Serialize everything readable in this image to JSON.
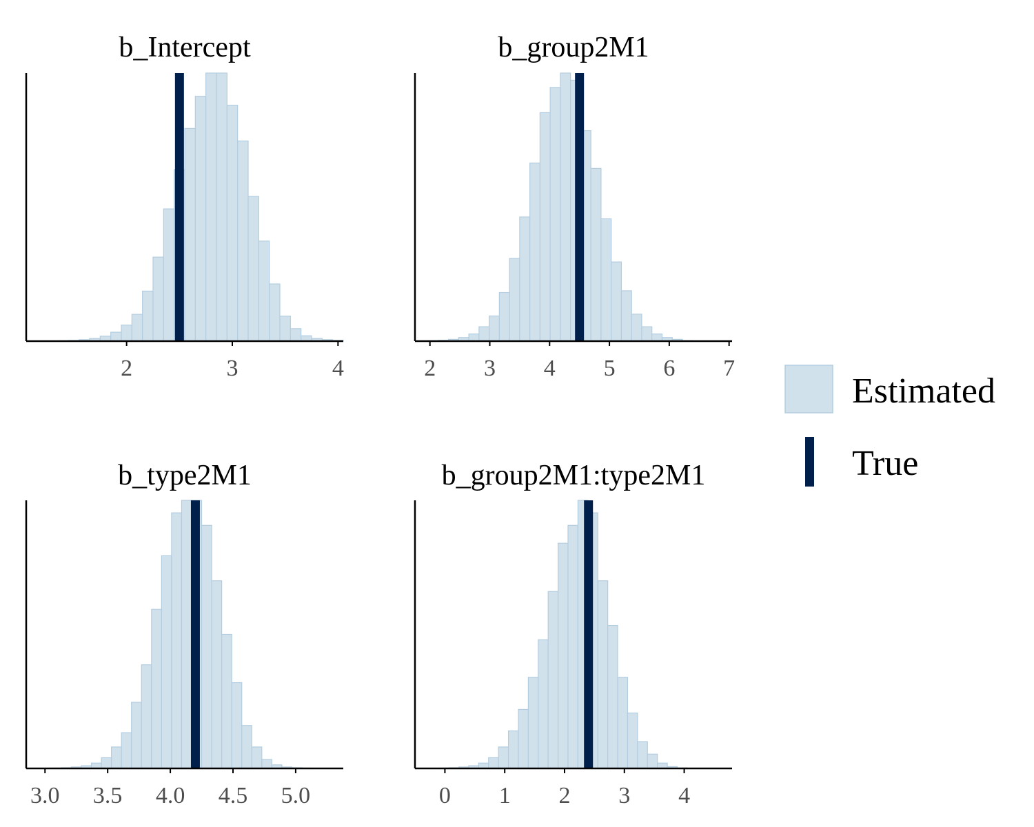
{
  "colors": {
    "estimated_fill": "#d1e1ec",
    "estimated_stroke": "#b3cde0",
    "true_line": "#011f4b",
    "axis": "#000000",
    "tick_text": "#4d4d4d"
  },
  "legend": {
    "items": [
      {
        "label": "Estimated",
        "kind": "estimated"
      },
      {
        "label": "True",
        "kind": "true"
      }
    ]
  },
  "chart_data": [
    {
      "type": "bar",
      "title": "b_Intercept",
      "xlabel": "",
      "ylabel": "",
      "xlim": [
        1.05,
        4.05
      ],
      "xticks": [
        2,
        3,
        4
      ],
      "xtick_labels": [
        "2",
        "3",
        "4"
      ],
      "bin_start": 1.35,
      "bin_width": 0.1,
      "values": [
        0.2,
        0.4,
        0.8,
        1.5,
        2.8,
        5,
        9,
        15,
        28,
        47,
        74,
        96,
        119,
        137,
        150,
        150,
        132,
        112,
        81,
        56,
        32,
        14,
        7,
        3,
        1.5,
        0.8,
        0.4
      ],
      "true_value": 2.5,
      "grid": false
    },
    {
      "type": "bar",
      "title": "b_group2M1",
      "xlabel": "",
      "ylabel": "",
      "xlim": [
        1.75,
        7.05
      ],
      "xticks": [
        2,
        3,
        4,
        5,
        6,
        7
      ],
      "xtick_labels": [
        "2",
        "3",
        "4",
        "5",
        "6",
        "7"
      ],
      "bin_start": 1.8,
      "bin_width": 0.17,
      "values": [
        0.2,
        0.3,
        0.5,
        1,
        2,
        4,
        8,
        14,
        27,
        46,
        69,
        99,
        127,
        141,
        149,
        145,
        117,
        96,
        68,
        44,
        28,
        15,
        8,
        4,
        2,
        1,
        0.3
      ],
      "true_value": 4.5,
      "grid": false
    },
    {
      "type": "bar",
      "title": "b_type2M1",
      "xlabel": "",
      "ylabel": "",
      "xlim": [
        2.85,
        5.38
      ],
      "xticks": [
        3.0,
        3.5,
        4.0,
        4.5,
        5.0
      ],
      "xtick_labels": [
        "3.0",
        "3.5",
        "4.0",
        "4.5",
        "5.0"
      ],
      "bin_start": 3.05,
      "bin_width": 0.08,
      "values": [
        0.2,
        0.4,
        0.8,
        1.5,
        3,
        6,
        12,
        20,
        37,
        58,
        89,
        119,
        143,
        150,
        150,
        136,
        105,
        75,
        48,
        24,
        12,
        5,
        2,
        0.8,
        0.4,
        0.2
      ],
      "true_value": 4.2,
      "grid": false
    },
    {
      "type": "bar",
      "title": "b_group2M1:type2M1",
      "xlabel": "",
      "ylabel": "",
      "xlim": [
        -0.5,
        4.8
      ],
      "xticks": [
        0,
        1,
        2,
        3,
        4
      ],
      "xtick_labels": [
        "0",
        "1",
        "2",
        "3",
        "4"
      ],
      "bin_start": -0.1,
      "bin_width": 0.166,
      "values": [
        0.2,
        0.4,
        0.8,
        1.5,
        3,
        6,
        12,
        21,
        33,
        51,
        72,
        99,
        126,
        136,
        150,
        143,
        105,
        80,
        51,
        31,
        15,
        8,
        3,
        1,
        0.3
      ],
      "true_value": 2.4,
      "grid": false
    }
  ]
}
